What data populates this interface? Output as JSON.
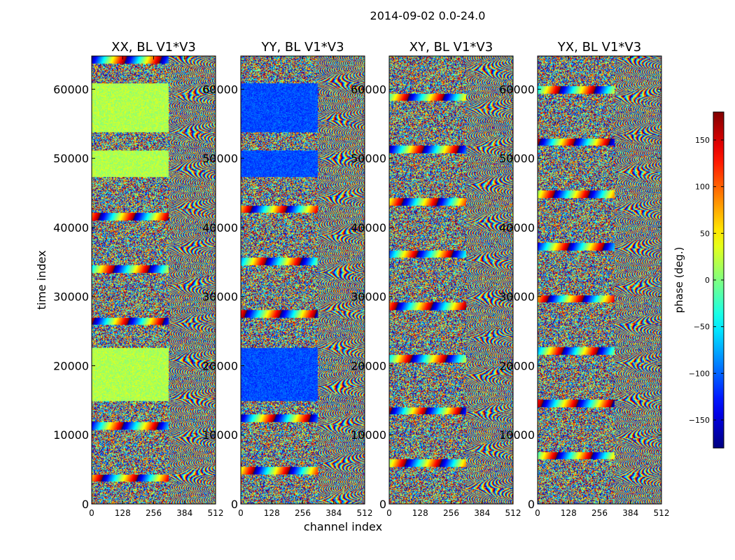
{
  "figure": {
    "suptitle": "2014-09-02 0.0-24.0",
    "xlabel": "channel index",
    "ylabel": "time index"
  },
  "chart_data": {
    "type": "heatmap",
    "colormap": "jet",
    "xlim": [
      0,
      512
    ],
    "ylim": [
      0,
      64800
    ],
    "xticks": [
      0,
      128,
      256,
      384,
      512
    ],
    "yticks": [
      0,
      10000,
      20000,
      30000,
      40000,
      50000,
      60000
    ],
    "panels": [
      {
        "title": "XX, BL V1*V3"
      },
      {
        "title": "YY, BL V1*V3"
      },
      {
        "title": "XY, BL V1*V3"
      },
      {
        "title": "YX, BL V1*V3"
      }
    ],
    "colorbar": {
      "label": "phase (deg.)",
      "range": [
        -180,
        180
      ],
      "ticks": [
        -150,
        -100,
        -50,
        0,
        50,
        100,
        150
      ],
      "tick_labels": [
        "−150",
        "−100",
        "−50",
        "0",
        "50",
        "100",
        "150"
      ]
    }
  }
}
